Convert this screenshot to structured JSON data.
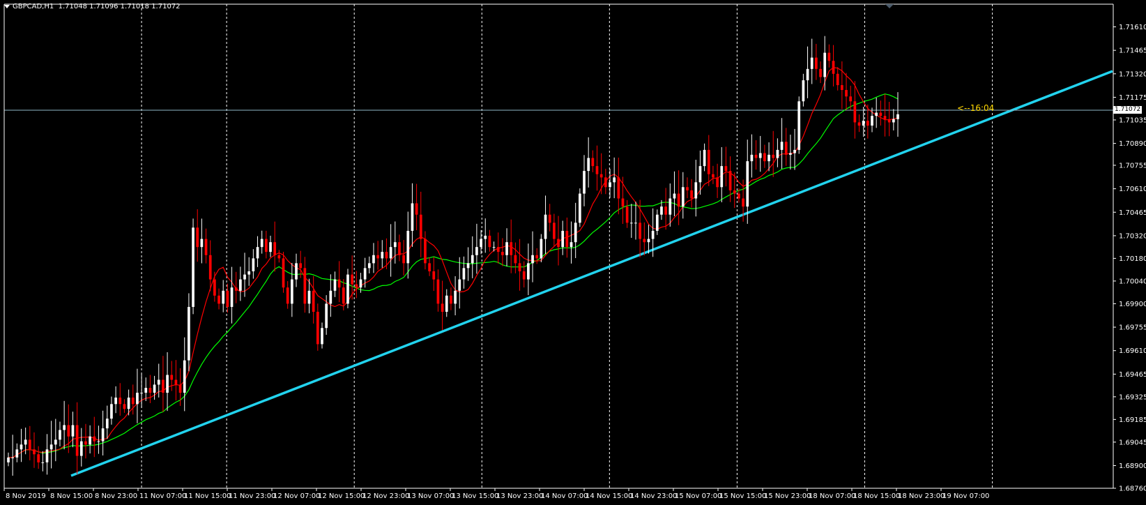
{
  "window": {
    "symbol_label": "GBPCAD,H1",
    "ohlc_label": "1.71048 1.71096 1.71018 1.71072"
  },
  "countdown": "<--16:04",
  "current_price_label": "1.71072",
  "colors": {
    "background": "#000000",
    "axis": "#ffffff",
    "grid": "#ffffff",
    "bull_candle": "#ffffff",
    "bear_candle": "#ff0000",
    "ma_fast": "#ff0000",
    "ma_slow": "#00ff00",
    "trendline": "#22d3ee",
    "bid_line": "#8fb7c9",
    "countdown": "#ffd700"
  },
  "chart_data": {
    "type": "candlestick",
    "symbol": "GBPCAD",
    "timeframe": "H1",
    "ylim": [
      1.6876,
      1.7175
    ],
    "y_ticks": [
      "1.71610",
      "1.71465",
      "1.71320",
      "1.71175",
      "1.71035",
      "1.70890",
      "1.70755",
      "1.70610",
      "1.70465",
      "1.70320",
      "1.70180",
      "1.70040",
      "1.69900",
      "1.69755",
      "1.69610",
      "1.69465",
      "1.69325",
      "1.69185",
      "1.69045",
      "1.68900",
      "1.68760"
    ],
    "x_ticks": [
      "8 Nov 2019",
      "8 Nov 15:00",
      "8 Nov 23:00",
      "11 Nov 07:00",
      "11 Nov 15:00",
      "11 Nov 23:00",
      "12 Nov 07:00",
      "12 Nov 15:00",
      "12 Nov 23:00",
      "13 Nov 07:00",
      "13 Nov 15:00",
      "13 Nov 23:00",
      "14 Nov 07:00",
      "14 Nov 15:00",
      "14 Nov 23:00",
      "15 Nov 07:00",
      "15 Nov 15:00",
      "15 Nov 23:00",
      "18 Nov 07:00",
      "18 Nov 15:00",
      "18 Nov 23:00",
      "19 Nov 07:00"
    ],
    "close_path": [
      1.6895,
      1.6895,
      1.69,
      1.6903,
      1.6906,
      1.69,
      1.6897,
      1.6892,
      1.6892,
      1.69,
      1.6903,
      1.6906,
      1.6912,
      1.6915,
      1.6908,
      1.6915,
      1.6896,
      1.6905,
      1.6903,
      1.6908,
      1.6905,
      1.6905,
      1.6913,
      1.6919,
      1.6928,
      1.6932,
      1.6928,
      1.6925,
      1.6932,
      1.6928,
      1.6935,
      1.6935,
      1.6938,
      1.6935,
      1.694,
      1.6943,
      1.6935,
      1.6946,
      1.6943,
      1.694,
      1.6935,
      1.6955,
      1.6988,
      1.7037,
      1.7025,
      1.703,
      1.702,
      1.7005,
      1.6995,
      1.699,
      1.6998,
      1.6988,
      1.7,
      1.6998,
      1.7005,
      1.7008,
      1.701,
      1.7018,
      1.7025,
      1.703,
      1.7022,
      1.7028,
      1.702,
      1.7018,
      1.7,
      1.699,
      1.7005,
      1.7015,
      1.7012,
      1.699,
      1.6998,
      1.6985,
      1.6965,
      1.6975,
      1.699,
      1.6998,
      1.7005,
      1.7,
      1.699,
      1.7008,
      1.7002,
      1.7,
      1.7005,
      1.7012,
      1.7015,
      1.702,
      1.7018,
      1.7022,
      1.7018,
      1.7025,
      1.7028,
      1.702,
      1.7015,
      1.7035,
      1.7052,
      1.7045,
      1.703,
      1.7015,
      1.701,
      1.7005,
      1.699,
      1.6985,
      1.6995,
      1.699,
      1.6998,
      1.7005,
      1.7012,
      1.7015,
      1.702,
      1.7025,
      1.703,
      1.7032,
      1.7025,
      1.7025,
      1.7022,
      1.702,
      1.7028,
      1.702,
      1.7015,
      1.701,
      1.7005,
      1.7015,
      1.702,
      1.7018,
      1.703,
      1.7045,
      1.704,
      1.703,
      1.7025,
      1.7035,
      1.7025,
      1.7028,
      1.704,
      1.7058,
      1.7072,
      1.708,
      1.7075,
      1.707,
      1.7068,
      1.7062,
      1.7065,
      1.7068,
      1.7055,
      1.705,
      1.704,
      1.704,
      1.704,
      1.703,
      1.7028,
      1.703,
      1.7035,
      1.7045,
      1.705,
      1.7045,
      1.7055,
      1.7058,
      1.705,
      1.7062,
      1.706,
      1.7055,
      1.7065,
      1.7075,
      1.7085,
      1.707,
      1.7068,
      1.7062,
      1.7075,
      1.7072,
      1.706,
      1.7058,
      1.7055,
      1.705,
      1.7078,
      1.7082,
      1.708,
      1.7083,
      1.7078,
      1.7082,
      1.708,
      1.7085,
      1.709,
      1.7082,
      1.7083,
      1.7085,
      1.7115,
      1.7128,
      1.7135,
      1.7142,
      1.7135,
      1.713,
      1.7145,
      1.714,
      1.7132,
      1.7125,
      1.7122,
      1.7118,
      1.7115,
      1.7102,
      1.71,
      1.7103,
      1.71,
      1.7106,
      1.7108,
      1.7106,
      1.7104,
      1.7102,
      1.7104,
      1.7107
    ]
  }
}
